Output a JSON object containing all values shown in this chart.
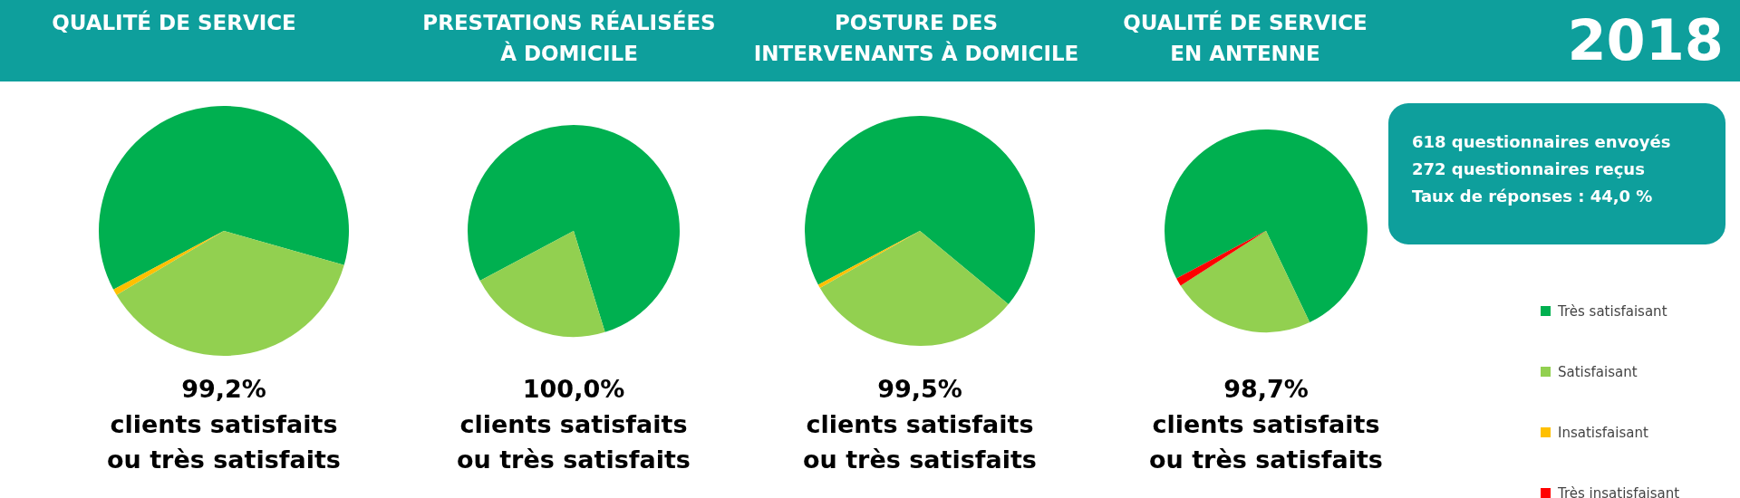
{
  "chart_data": [
    {
      "type": "pie",
      "title": "QUALITÉ DE SERVICE",
      "values": [
        62.2,
        37.0,
        0.8,
        0
      ],
      "colors": [
        "#00b050",
        "#92d050",
        "#ffc000",
        "#ff0000"
      ],
      "annotations": [
        "99,2%\nclients satisfaits\nou très satisfaits"
      ]
    },
    {
      "type": "pie",
      "title": "PRESTATIONS RÉALISÉES\nÀ DOMICILE",
      "values": [
        78.0,
        22.0,
        0,
        0
      ],
      "colors": [
        "#00b050",
        "#92d050",
        "#ffc000",
        "#ff0000"
      ],
      "annotations": [
        "100,0%\nclients satisfaits\nou très satisfaits"
      ]
    },
    {
      "type": "pie",
      "title": "POSTURE DES\nINTERVENANTS À DOMICILE",
      "values": [
        68.8,
        30.7,
        0.5,
        0
      ],
      "colors": [
        "#00b050",
        "#92d050",
        "#ffc000",
        "#ff0000"
      ],
      "annotations": [
        "99,5%\nclients satisfaits\nou très satisfaits"
      ]
    },
    {
      "type": "pie",
      "title": "QUALITÉ DE SERVICE\nEN ANTENNE",
      "categories": [
        "Très satisfaisant",
        "Satisfaisant",
        "Insatisfaisant",
        "Très insatisfaisant"
      ],
      "values": [
        75.7,
        23.0,
        0,
        1.3
      ],
      "colors": [
        "#00b050",
        "#92d050",
        "#ffc000",
        "#ff0000"
      ],
      "legend": "right",
      "annotations": [
        "98,7%\nclients satisfaits\nou très satisfaits"
      ]
    },
    {
      "type": "other",
      "title": "2018",
      "annotations": [
        "618 questionnaires envoyés\n272 questionnaires reçus\nTaux de réponses : 44,0 %"
      ]
    }
  ]
}
